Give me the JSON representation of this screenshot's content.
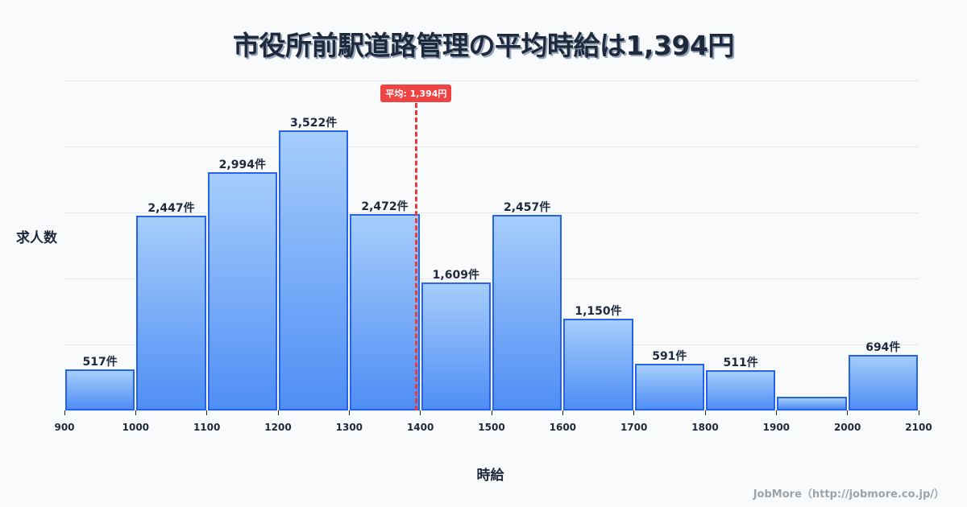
{
  "title": "市役所前駅道路管理の平均時給は1,394円",
  "ylabel": "求人数",
  "xlabel": "時給",
  "credit": "JobMore（http://jobmore.co.jp/）",
  "mean_badge": "平均: 1,394円",
  "colors": {
    "bar_border": "#2563eb",
    "bar_top": "#a6cdfb",
    "bar_bottom": "#4f8ef5",
    "mean": "#ef4444"
  },
  "chart_data": {
    "type": "bar",
    "title": "市役所前駅道路管理の平均時給は1,394円",
    "xlabel": "時給",
    "ylabel": "求人数",
    "bins": [
      [
        900,
        1000
      ],
      [
        1000,
        1100
      ],
      [
        1100,
        1200
      ],
      [
        1200,
        1300
      ],
      [
        1300,
        1400
      ],
      [
        1400,
        1500
      ],
      [
        1500,
        1600
      ],
      [
        1600,
        1700
      ],
      [
        1700,
        1800
      ],
      [
        1800,
        1900
      ],
      [
        1900,
        2000
      ],
      [
        2000,
        2100
      ]
    ],
    "values": [
      517,
      2447,
      2994,
      3522,
      2472,
      1609,
      2457,
      1150,
      591,
      511,
      172,
      694
    ],
    "labels": [
      "517件",
      "2,447件",
      "2,994件",
      "3,522件",
      "2,472件",
      "1,609件",
      "2,457件",
      "1,150件",
      "591件",
      "511件",
      "",
      "694件"
    ],
    "x_ticks": [
      "900",
      "1000",
      "1100",
      "1200",
      "1300",
      "1400",
      "1500",
      "1600",
      "1700",
      "1800",
      "1900",
      "2000",
      "2100"
    ],
    "xlim": [
      900,
      2100
    ],
    "mean": 1394,
    "grid": true,
    "legend": null
  }
}
